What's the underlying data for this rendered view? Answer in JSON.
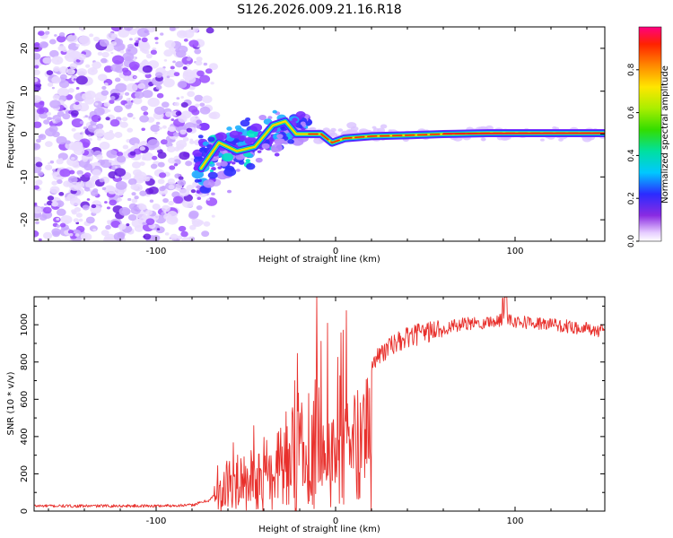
{
  "title": "S126.2026.009.21.16.R18",
  "colors": {
    "snr_line": "#e8302c",
    "axis": "#000000",
    "background": "#ffffff"
  },
  "chart_data": [
    {
      "type": "heatmap",
      "name": "spectrogram",
      "xlabel": "Height of straight line (km)",
      "ylabel": "Frequency (Hz)",
      "xlim": [
        -168,
        150
      ],
      "ylim": [
        -25,
        25
      ],
      "xticks": [
        -100,
        0,
        100
      ],
      "xtick_labels": [
        "-100",
        "0",
        "100"
      ],
      "yticks": [
        -20,
        -10,
        0,
        10,
        20
      ],
      "ytick_labels": [
        "-20",
        "-10",
        "0",
        "10",
        "20"
      ],
      "noise_region_km": [
        -168,
        -75
      ],
      "transition_region_km": [
        -78,
        -15
      ],
      "tone_track": {
        "x_km": [
          -75,
          -65,
          -55,
          -45,
          -35,
          -28,
          -22,
          -15,
          -8,
          -2,
          5,
          20,
          40,
          60,
          85,
          110,
          150
        ],
        "freq_hz": [
          -8,
          -2,
          -4,
          -3,
          2,
          3,
          0,
          0,
          0,
          -2,
          -1,
          -0.5,
          -0.3,
          0,
          0.2,
          0.2,
          0.2
        ]
      },
      "colorbar": {
        "label": "Normalized spectral amplitude",
        "range": [
          0,
          1
        ],
        "ticks": [
          0.0,
          0.2,
          0.4,
          0.6,
          0.8
        ],
        "tick_labels": [
          "0.0",
          "0.2",
          "0.4",
          "0.6",
          "0.8"
        ]
      }
    },
    {
      "type": "line",
      "name": "snr",
      "xlabel": "Height of straight line (km)",
      "ylabel": "SNR (10 * v/v)",
      "xlim": [
        -168,
        150
      ],
      "ylim": [
        0,
        1150
      ],
      "xticks": [
        -100,
        0,
        100
      ],
      "xtick_labels": [
        "-100",
        "0",
        "100"
      ],
      "yticks": [
        0,
        200,
        400,
        600,
        800,
        1000
      ],
      "ytick_labels": [
        "0",
        "200",
        "400",
        "600",
        "800",
        "1000"
      ],
      "series": [
        {
          "name": "SNR",
          "x": [
            -168,
            -150,
            -120,
            -100,
            -80,
            -70,
            -65,
            -60,
            -55,
            -50,
            -45,
            -40,
            -35,
            -30,
            -25,
            -20,
            -15,
            -10,
            -5,
            0,
            5,
            10,
            15,
            20,
            25,
            30,
            40,
            50,
            60,
            70,
            80,
            90,
            95,
            100,
            110,
            120,
            130,
            140,
            150
          ],
          "y": [
            28,
            27,
            28,
            28,
            32,
            60,
            120,
            180,
            200,
            180,
            230,
            250,
            220,
            310,
            360,
            380,
            420,
            480,
            560,
            580,
            620,
            700,
            760,
            800,
            840,
            880,
            930,
            960,
            980,
            1000,
            1010,
            1020,
            1040,
            1020,
            1010,
            1000,
            990,
            980,
            960
          ]
        }
      ]
    }
  ]
}
